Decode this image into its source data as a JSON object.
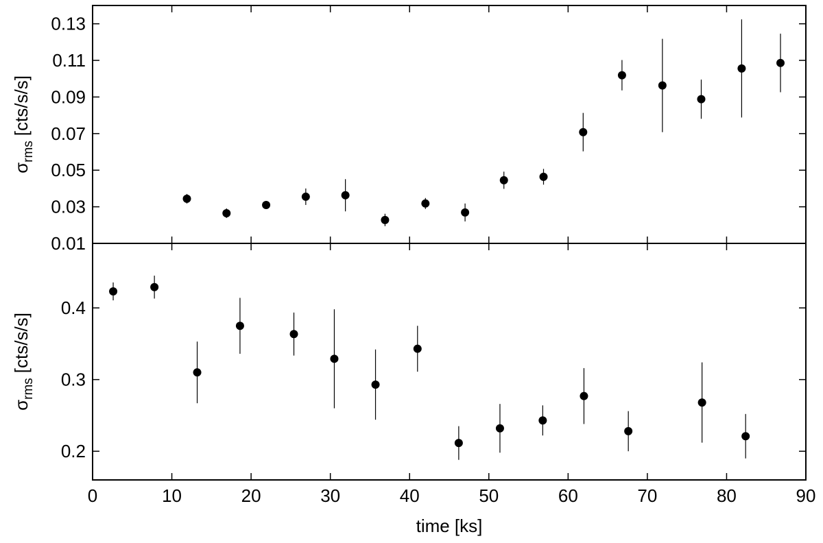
{
  "chart_data": [
    {
      "type": "scatter",
      "ylabel": {
        "symbol": "σ",
        "sub": "rms",
        "unit": "[cts/s/s]"
      },
      "color": "#000000",
      "xlim": [
        0,
        90
      ],
      "xticks": [
        0,
        10,
        20,
        30,
        40,
        50,
        60,
        70,
        80,
        90
      ],
      "ylim": [
        0.01,
        0.14
      ],
      "yticks": [
        0.01,
        0.03,
        0.05,
        0.07,
        0.09,
        0.11,
        0.13
      ],
      "x": [
        11.9,
        16.9,
        21.9,
        26.9,
        31.9,
        36.9,
        42,
        47,
        51.9,
        56.9,
        61.9,
        66.8,
        71.9,
        76.8,
        81.9,
        86.8
      ],
      "values": [
        0.0344,
        0.0265,
        0.031,
        0.0355,
        0.0363,
        0.0228,
        0.0318,
        0.0269,
        0.0445,
        0.0464,
        0.0708,
        0.1019,
        0.0963,
        0.0888,
        0.1056,
        0.1086
      ],
      "errors": [
        0.0026,
        0.0026,
        0.001,
        0.0045,
        0.0088,
        0.0034,
        0.003,
        0.0049,
        0.0047,
        0.0043,
        0.0105,
        0.0083,
        0.0255,
        0.0107,
        0.0268,
        0.016
      ]
    },
    {
      "type": "scatter",
      "ylabel": {
        "symbol": "σ",
        "sub": "rms",
        "unit": "[cts/s/s]"
      },
      "xlabel": "time [ks]",
      "color": "#000000",
      "xlim": [
        0,
        90
      ],
      "xticks": [
        0,
        10,
        20,
        30,
        40,
        50,
        60,
        70,
        80,
        90
      ],
      "ylim": [
        0.16,
        0.49
      ],
      "yticks": [
        0.2,
        0.3,
        0.4
      ],
      "x": [
        2.6,
        7.8,
        13.2,
        18.6,
        25.4,
        30.5,
        35.7,
        41,
        46.2,
        51.4,
        56.8,
        62,
        67.6,
        76.9,
        82.4
      ],
      "values": [
        0.423,
        0.429,
        0.31,
        0.375,
        0.3635,
        0.329,
        0.293,
        0.343,
        0.2115,
        0.232,
        0.243,
        0.277,
        0.228,
        0.268,
        0.221
      ],
      "errors": [
        0.0125,
        0.016,
        0.043,
        0.039,
        0.03,
        0.069,
        0.049,
        0.032,
        0.0235,
        0.034,
        0.021,
        0.039,
        0.028,
        0.056,
        0.031
      ]
    }
  ]
}
